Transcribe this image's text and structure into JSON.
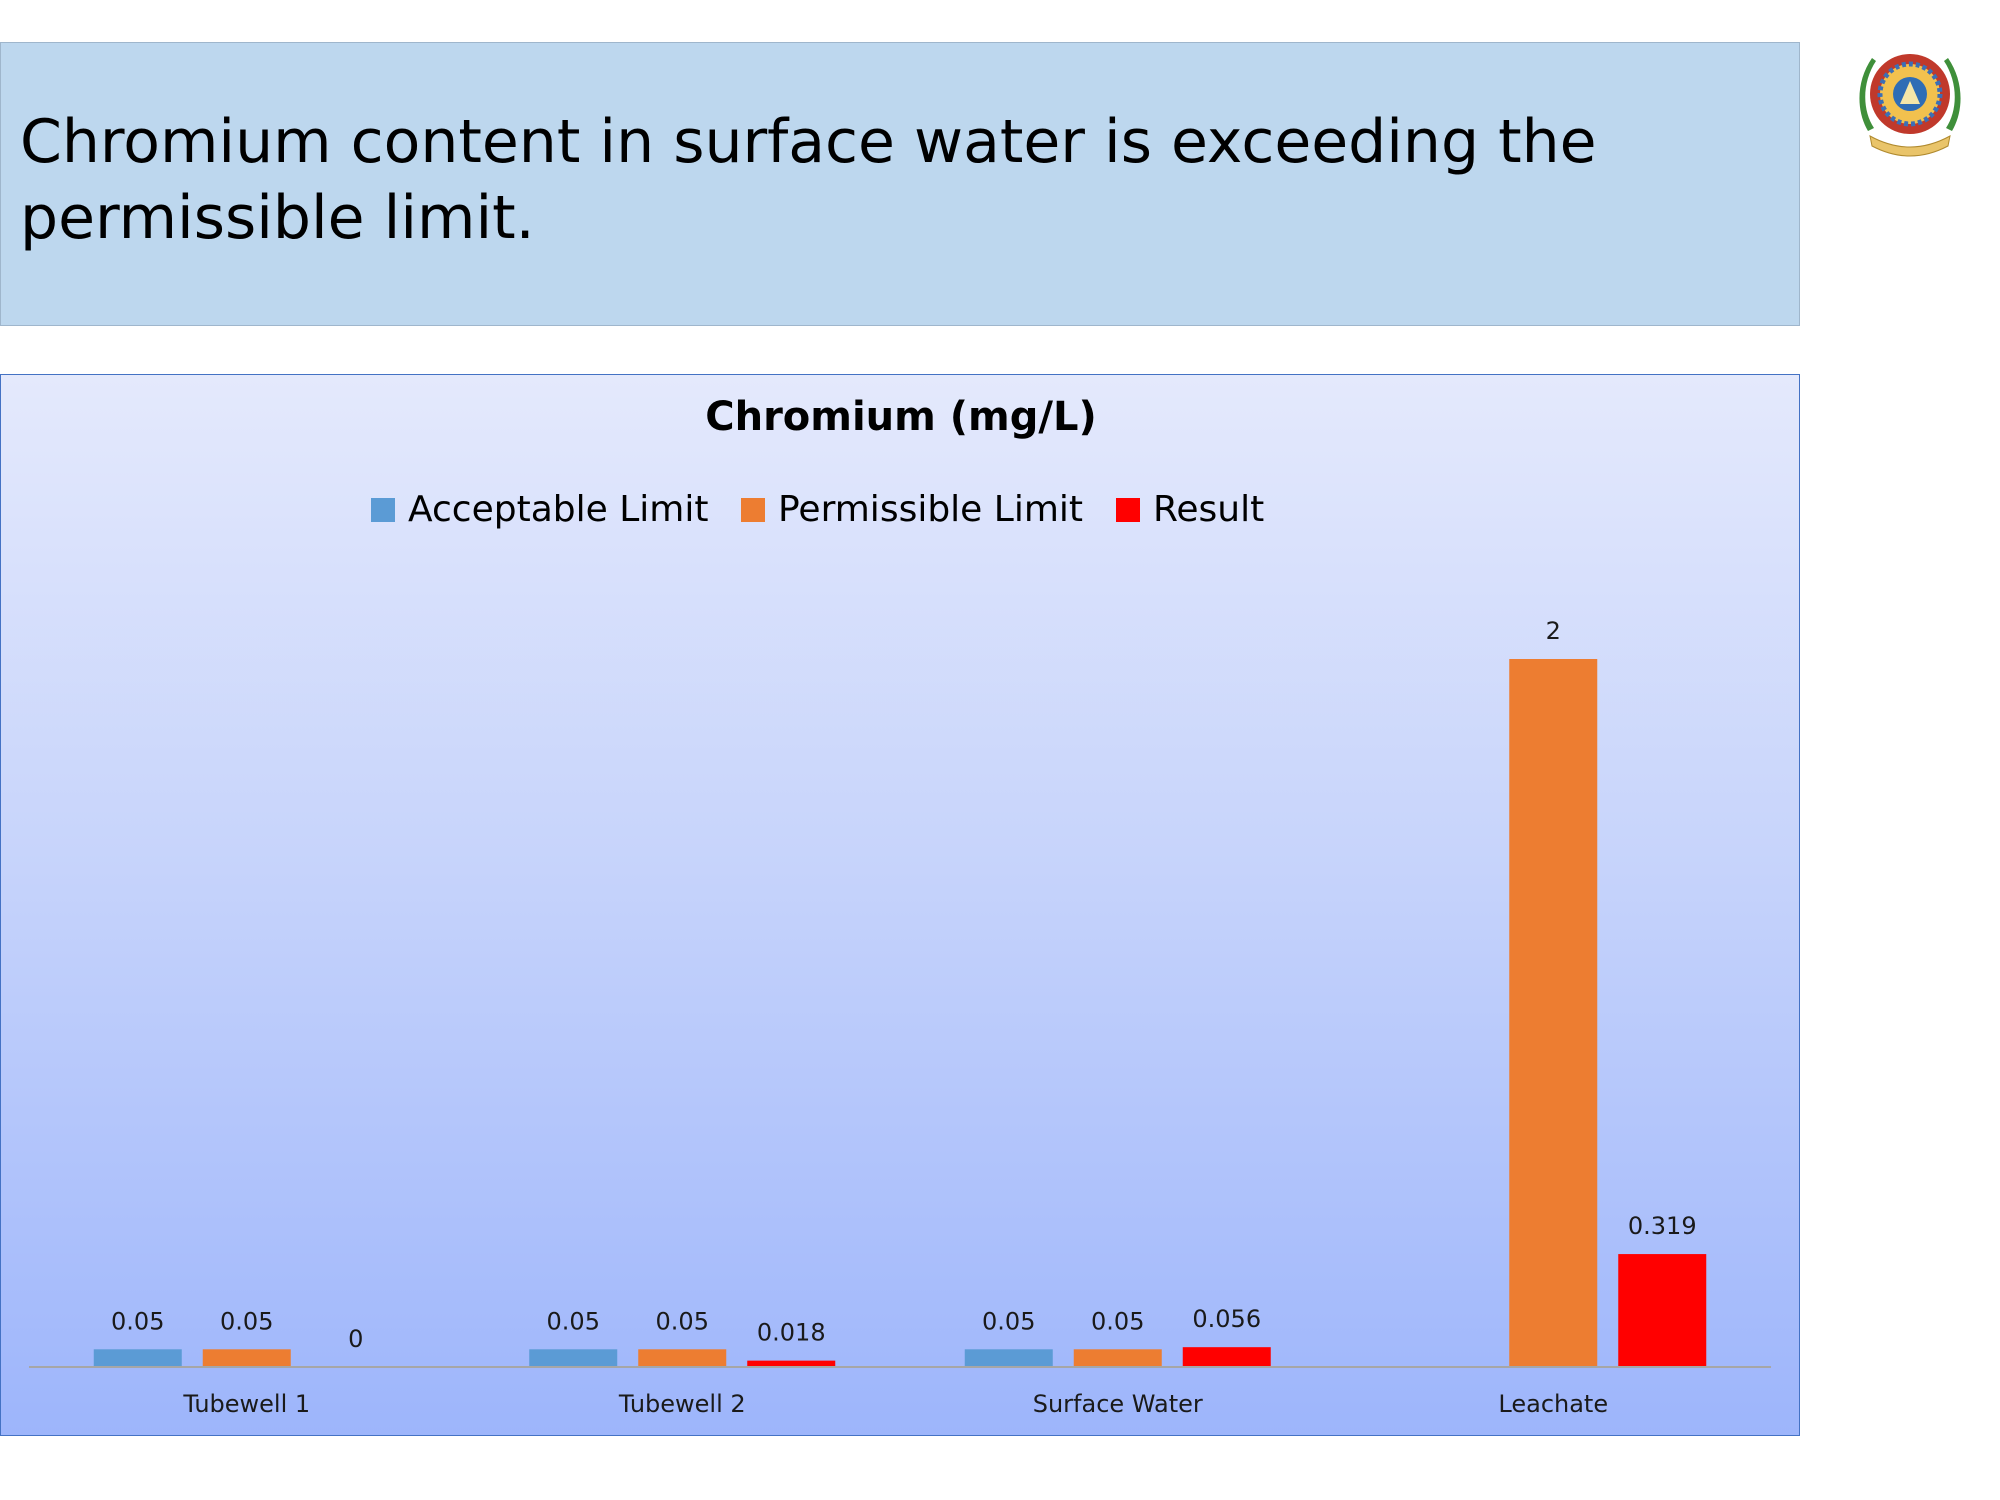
{
  "slide": {
    "title": "Chromium content in surface water is exceeding the permissible limit."
  },
  "logo": {
    "name": "institute-seal"
  },
  "chart_data": {
    "type": "bar",
    "title": "Chromium (mg/L)",
    "xlabel": "",
    "ylabel": "",
    "categories": [
      "Tubewell 1",
      "Tubewell 2",
      "Surface Water",
      "Leachate"
    ],
    "series": [
      {
        "name": "Acceptable Limit",
        "color": "#5b9bd5",
        "values": [
          0.05,
          0.05,
          0.05,
          null
        ],
        "labels": [
          "0.05",
          "0.05",
          "0.05",
          ""
        ]
      },
      {
        "name": "Permissible Limit",
        "color": "#ed7d31",
        "values": [
          0.05,
          0.05,
          0.05,
          2
        ],
        "labels": [
          "0.05",
          "0.05",
          "0.05",
          "2"
        ]
      },
      {
        "name": "Result",
        "color": "#ff0000",
        "values": [
          0,
          0.018,
          0.056,
          0.319
        ],
        "labels": [
          "0",
          "0.018",
          "0.056",
          "0.319"
        ]
      }
    ],
    "legend_position": "top",
    "grid": false
  }
}
